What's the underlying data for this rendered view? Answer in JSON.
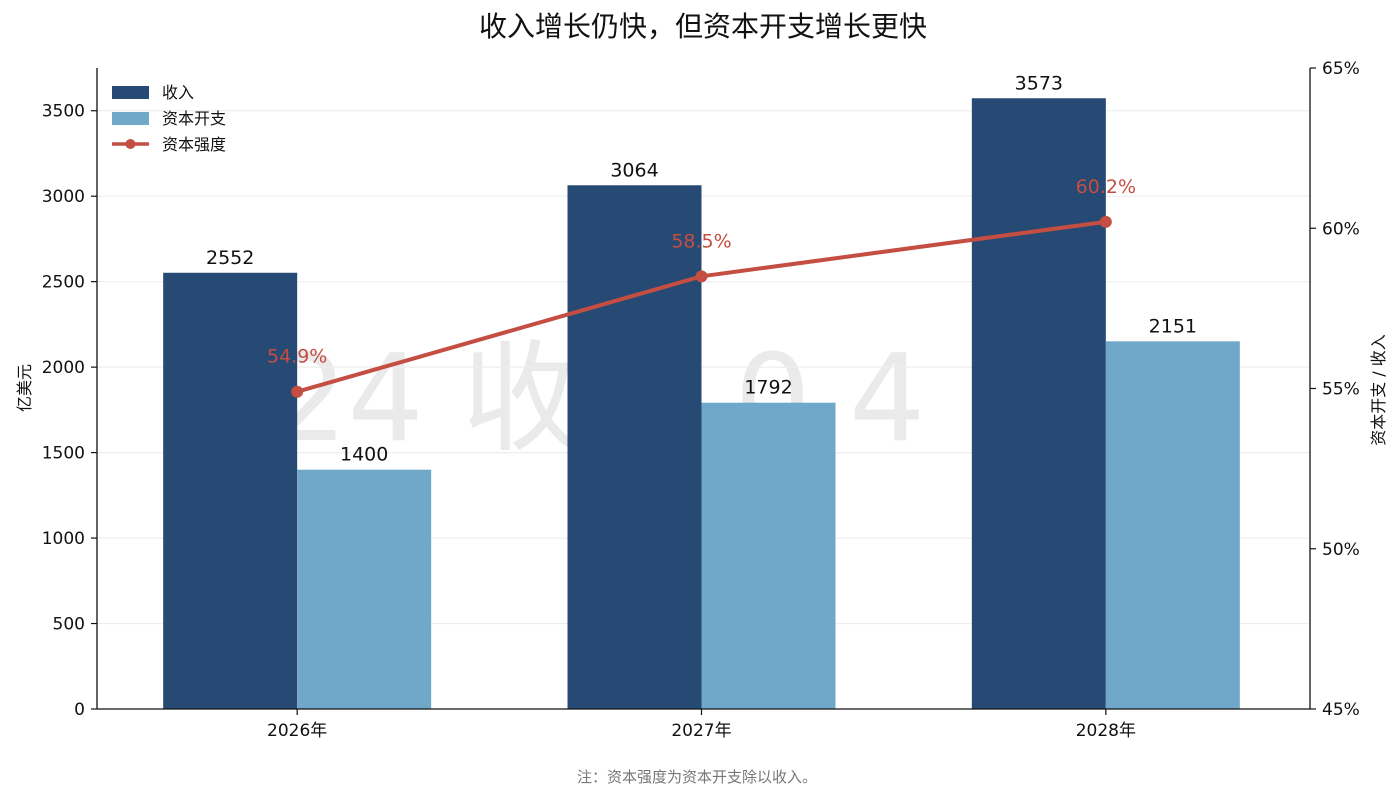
{
  "chart_data": {
    "type": "bar",
    "title": "收入增长仍快，但资本开支增长更快",
    "categories": [
      "2026年",
      "2027年",
      "2028年"
    ],
    "series": [
      {
        "name": "收入",
        "type": "bar",
        "values": [
          2552,
          3064,
          3573
        ],
        "color": "#264a73"
      },
      {
        "name": "资本开支",
        "type": "bar",
        "values": [
          1400,
          1792,
          2151
        ],
        "color": "#6fa8c9"
      },
      {
        "name": "资本强度",
        "type": "line",
        "axis": "right",
        "values": [
          54.9,
          58.5,
          60.2
        ],
        "color": "#c44e42"
      }
    ],
    "ylabel": "亿美元",
    "ylabel_right": "资本开支 / 收入",
    "ylim": [
      0,
      3750
    ],
    "ylim_right": [
      45,
      65
    ],
    "yticks": [
      "0",
      "500",
      "1000",
      "1500",
      "2000",
      "2500",
      "3000",
      "3500"
    ],
    "yticks_right": [
      "45%",
      "50%",
      "55%",
      "60%",
      "65%"
    ],
    "bar_labels": {
      "revenue": [
        "2552",
        "3064",
        "3573"
      ],
      "capex": [
        "1400",
        "1792",
        "2151"
      ]
    },
    "line_labels": [
      "54.9%",
      "58.5%",
      "60.2%"
    ],
    "legend": [
      "收入",
      "资本开支",
      "资本强度"
    ],
    "legend_position": "top-left",
    "grid": "horizontal",
    "note": "注：资本强度为资本开支除以收入。",
    "watermark": "024 收 4 0 4"
  }
}
